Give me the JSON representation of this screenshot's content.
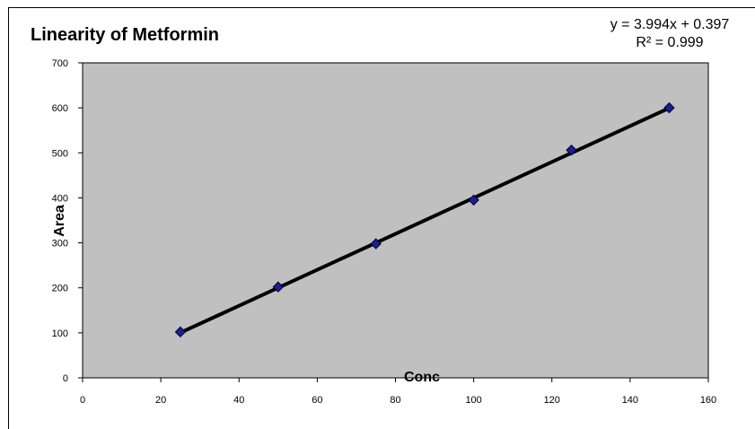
{
  "chart_data": {
    "type": "scatter",
    "title": "Linearity of Metformin",
    "xlabel": "Conc",
    "ylabel": "Area",
    "xlim": [
      0,
      160
    ],
    "ylim": [
      0,
      700
    ],
    "xticks": [
      0,
      20,
      40,
      60,
      80,
      100,
      120,
      140,
      160
    ],
    "yticks": [
      0,
      100,
      200,
      300,
      400,
      500,
      600,
      700
    ],
    "x": [
      25,
      50,
      75,
      100,
      125,
      150
    ],
    "y": [
      102,
      202,
      298,
      395,
      506,
      600
    ],
    "grid": false,
    "trendline": {
      "type": "linear",
      "slope": 3.994,
      "intercept": 0.397,
      "equation_label": "y = 3.994x + 0.397",
      "r2_label": "R² = 0.999"
    },
    "colors": {
      "plot_background": "#c0c0c0",
      "marker": "#1f1f8a",
      "trendline": "#000000"
    }
  }
}
